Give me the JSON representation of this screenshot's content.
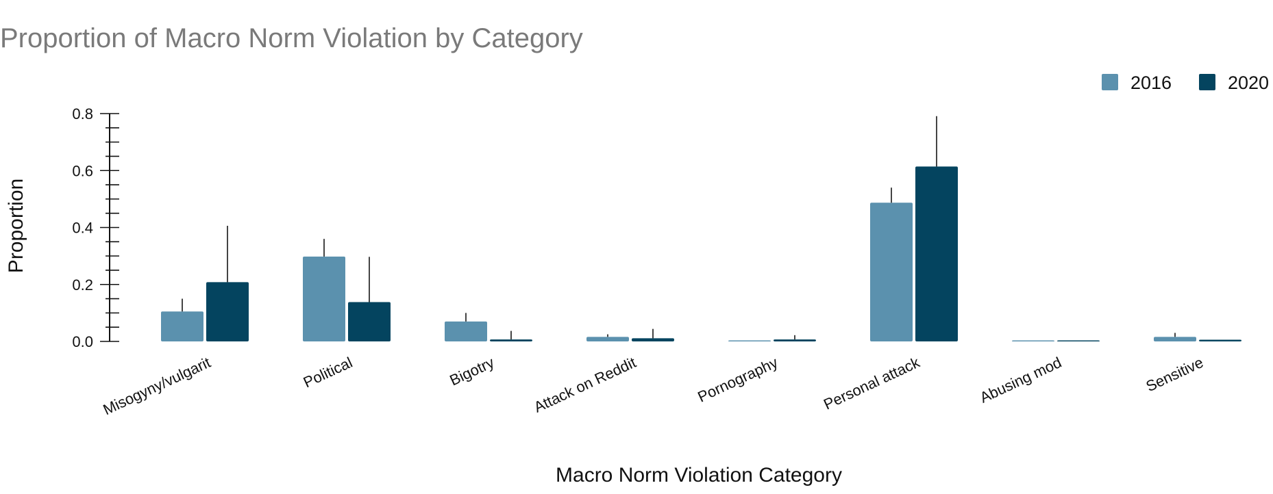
{
  "chart_data": {
    "type": "bar",
    "title": "Proportion of Macro Norm Violation by Category",
    "xlabel": "Macro Norm Violation Category",
    "ylabel": "Proportion",
    "ylim": [
      0,
      0.8
    ],
    "yticks": [
      "0.0",
      "0.2",
      "0.4",
      "0.6",
      "0.8"
    ],
    "legend_position": "top-right",
    "grid": false,
    "categories": [
      "Misogyny/vulgarit",
      "Political",
      "Bigotry",
      "Attack on Reddit",
      "Pornography",
      "Personal attack",
      "Abusing mod",
      "Sensitive"
    ],
    "series": [
      {
        "name": "2016",
        "color": "#5b91ae",
        "values": [
          0.105,
          0.298,
          0.07,
          0.016,
          0.002,
          0.487,
          0.002,
          0.016
        ],
        "error_upper": [
          0.15,
          0.36,
          0.1,
          0.025,
          0.002,
          0.54,
          0.002,
          0.03
        ]
      },
      {
        "name": "2020",
        "color": "#04445f",
        "values": [
          0.208,
          0.138,
          0.007,
          0.011,
          0.007,
          0.614,
          0.002,
          0.006
        ],
        "error_upper": [
          0.406,
          0.297,
          0.037,
          0.044,
          0.022,
          0.791,
          0.002,
          0.006
        ]
      }
    ]
  }
}
